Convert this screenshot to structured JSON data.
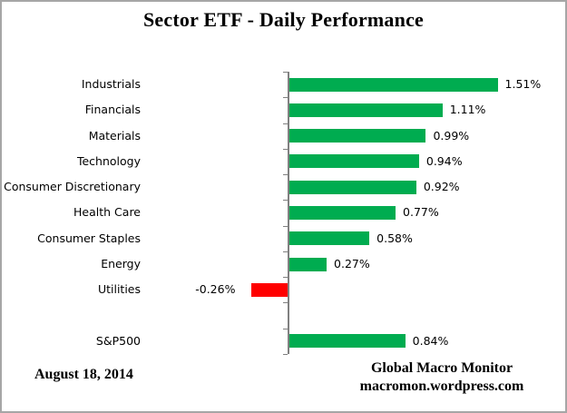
{
  "chart_data": {
    "type": "bar",
    "orientation": "horizontal",
    "title": "Sector ETF - Daily Performance",
    "categories": [
      "Industrials",
      "Financials",
      "Materials",
      "Technology",
      "Consumer Discretionary",
      "Health Care",
      "Consumer Staples",
      "Energy",
      "Utilities",
      "",
      "S&P500"
    ],
    "values": [
      1.51,
      1.11,
      0.99,
      0.94,
      0.92,
      0.77,
      0.58,
      0.27,
      -0.26,
      null,
      0.84
    ],
    "value_labels": [
      "1.51%",
      "1.11%",
      "0.99%",
      "0.94%",
      "0.92%",
      "0.77%",
      "0.58%",
      "0.27%",
      "-0.26%",
      "",
      "0.84%"
    ],
    "positive_color": "#00AC50",
    "negative_color": "#FF0000",
    "axis_color": "#808080",
    "grid": false,
    "legend": false,
    "data_labels": "outside-end"
  },
  "footer": {
    "date": "August 18, 2014",
    "credit_line1": "Global Macro Monitor",
    "credit_line2": "macromon.wordpress.com"
  }
}
